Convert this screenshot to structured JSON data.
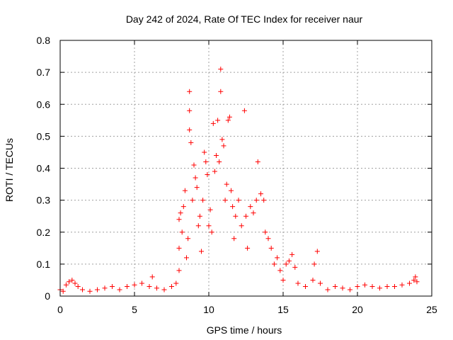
{
  "chart_data": {
    "type": "scatter",
    "title": "Day 242 of 2024, Rate Of TEC Index for receiver naur",
    "xlabel": "GPS time / hours",
    "ylabel": "ROTI / TECUs",
    "xlim": [
      0,
      25
    ],
    "ylim": [
      0,
      0.8
    ],
    "xticks": [
      "0",
      "5",
      "10",
      "15",
      "20",
      "25"
    ],
    "yticks": [
      "0",
      "0.1",
      "0.2",
      "0.3",
      "0.4",
      "0.5",
      "0.6",
      "0.7",
      "0.8"
    ],
    "grid": true,
    "marker": "+",
    "color": "#ff0000",
    "series": [
      {
        "name": "ROTI",
        "points": [
          [
            0.0,
            0.02
          ],
          [
            0.2,
            0.015
          ],
          [
            0.4,
            0.035
          ],
          [
            0.6,
            0.045
          ],
          [
            0.8,
            0.05
          ],
          [
            1.0,
            0.04
          ],
          [
            1.2,
            0.03
          ],
          [
            1.5,
            0.02
          ],
          [
            2.0,
            0.015
          ],
          [
            2.5,
            0.02
          ],
          [
            3.0,
            0.025
          ],
          [
            3.5,
            0.03
          ],
          [
            4.0,
            0.02
          ],
          [
            4.5,
            0.03
          ],
          [
            5.0,
            0.035
          ],
          [
            5.5,
            0.04
          ],
          [
            6.0,
            0.03
          ],
          [
            6.2,
            0.06
          ],
          [
            6.5,
            0.025
          ],
          [
            7.0,
            0.02
          ],
          [
            7.5,
            0.03
          ],
          [
            7.8,
            0.04
          ],
          [
            8.0,
            0.08
          ],
          [
            8.0,
            0.15
          ],
          [
            8.0,
            0.24
          ],
          [
            8.1,
            0.26
          ],
          [
            8.2,
            0.2
          ],
          [
            8.3,
            0.28
          ],
          [
            8.4,
            0.33
          ],
          [
            8.5,
            0.12
          ],
          [
            8.6,
            0.18
          ],
          [
            8.7,
            0.52
          ],
          [
            8.7,
            0.64
          ],
          [
            8.7,
            0.58
          ],
          [
            8.8,
            0.48
          ],
          [
            8.9,
            0.3
          ],
          [
            9.0,
            0.41
          ],
          [
            9.1,
            0.37
          ],
          [
            9.2,
            0.34
          ],
          [
            9.3,
            0.22
          ],
          [
            9.4,
            0.25
          ],
          [
            9.5,
            0.14
          ],
          [
            9.6,
            0.3
          ],
          [
            9.7,
            0.45
          ],
          [
            9.8,
            0.42
          ],
          [
            9.9,
            0.38
          ],
          [
            10.0,
            0.22
          ],
          [
            10.1,
            0.27
          ],
          [
            10.2,
            0.2
          ],
          [
            10.3,
            0.54
          ],
          [
            10.4,
            0.39
          ],
          [
            10.5,
            0.44
          ],
          [
            10.6,
            0.55
          ],
          [
            10.7,
            0.42
          ],
          [
            10.8,
            0.71
          ],
          [
            10.8,
            0.64
          ],
          [
            10.9,
            0.49
          ],
          [
            11.0,
            0.47
          ],
          [
            11.1,
            0.3
          ],
          [
            11.2,
            0.35
          ],
          [
            11.3,
            0.55
          ],
          [
            11.4,
            0.56
          ],
          [
            11.5,
            0.33
          ],
          [
            11.6,
            0.28
          ],
          [
            11.7,
            0.18
          ],
          [
            11.8,
            0.25
          ],
          [
            12.0,
            0.3
          ],
          [
            12.2,
            0.22
          ],
          [
            12.4,
            0.58
          ],
          [
            12.5,
            0.25
          ],
          [
            12.6,
            0.15
          ],
          [
            12.8,
            0.28
          ],
          [
            13.0,
            0.26
          ],
          [
            13.2,
            0.3
          ],
          [
            13.3,
            0.42
          ],
          [
            13.5,
            0.32
          ],
          [
            13.7,
            0.3
          ],
          [
            13.8,
            0.2
          ],
          [
            14.0,
            0.18
          ],
          [
            14.2,
            0.15
          ],
          [
            14.4,
            0.1
          ],
          [
            14.6,
            0.12
          ],
          [
            14.8,
            0.08
          ],
          [
            15.0,
            0.05
          ],
          [
            15.2,
            0.1
          ],
          [
            15.4,
            0.11
          ],
          [
            15.6,
            0.13
          ],
          [
            15.8,
            0.09
          ],
          [
            16.0,
            0.04
          ],
          [
            16.5,
            0.03
          ],
          [
            17.0,
            0.05
          ],
          [
            17.1,
            0.1
          ],
          [
            17.3,
            0.14
          ],
          [
            17.5,
            0.04
          ],
          [
            18.0,
            0.02
          ],
          [
            18.5,
            0.03
          ],
          [
            19.0,
            0.025
          ],
          [
            19.5,
            0.02
          ],
          [
            20.0,
            0.03
          ],
          [
            20.5,
            0.035
          ],
          [
            21.0,
            0.03
          ],
          [
            21.5,
            0.025
          ],
          [
            22.0,
            0.03
          ],
          [
            22.5,
            0.03
          ],
          [
            23.0,
            0.035
          ],
          [
            23.5,
            0.04
          ],
          [
            23.8,
            0.05
          ],
          [
            23.9,
            0.06
          ],
          [
            24.0,
            0.045
          ]
        ]
      }
    ]
  }
}
